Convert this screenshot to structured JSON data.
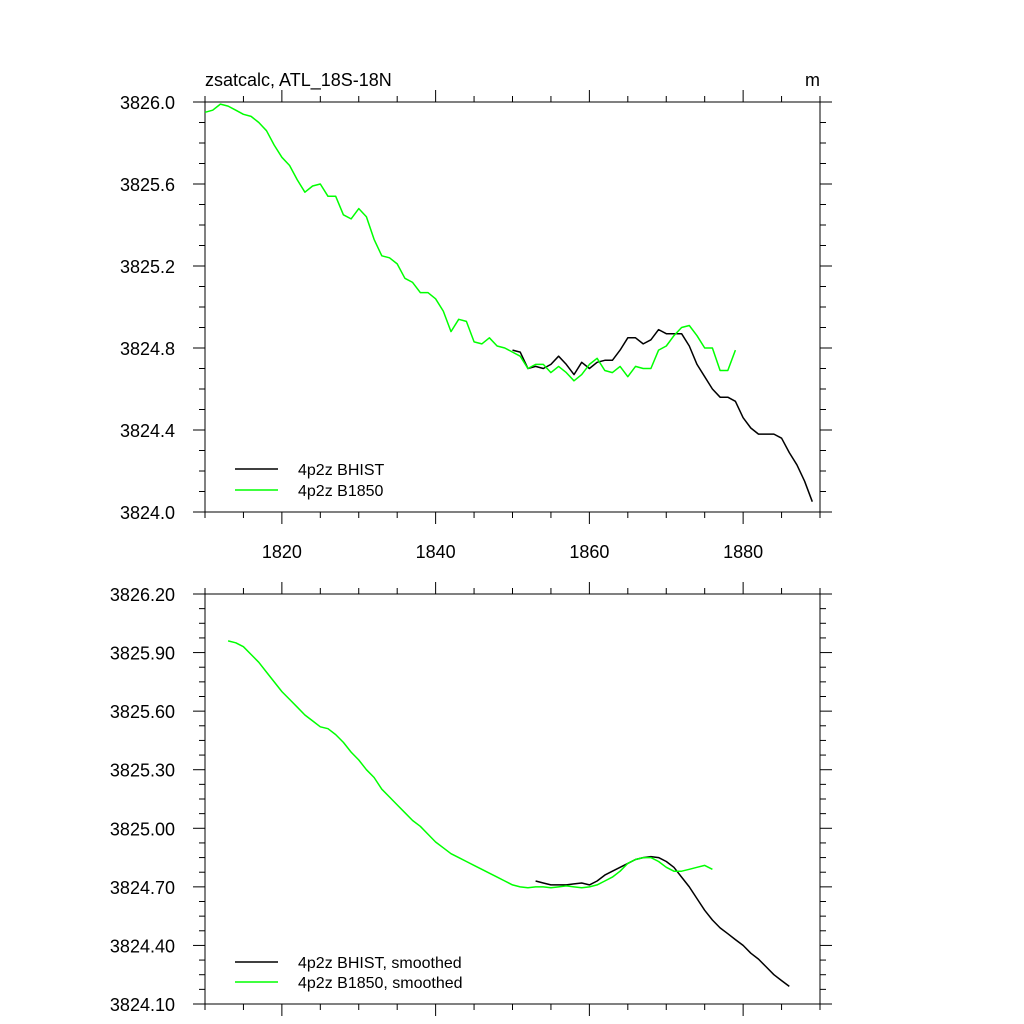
{
  "chart_data": [
    {
      "type": "line",
      "title": "zsatcalc, ATL_18S-18N",
      "units": "m",
      "xlim": [
        1810,
        1890
      ],
      "ylim": [
        3824.0,
        3826.0
      ],
      "x_ticks": [
        1820,
        1840,
        1860,
        1880
      ],
      "x_tick_labels": [
        "1820",
        "1840",
        "1860",
        "1880"
      ],
      "y_ticks": [
        3824.0,
        3824.4,
        3824.8,
        3825.2,
        3825.6,
        3826.0
      ],
      "y_tick_labels": [
        "3824.0",
        "3824.4",
        "3824.8",
        "3825.2",
        "3825.6",
        "3826.0"
      ],
      "grid": false,
      "legend_position": "bottom-left",
      "series": [
        {
          "name": "4p2z BHIST",
          "color": "#000000",
          "x": [
            1850,
            1851,
            1852,
            1853,
            1854,
            1855,
            1856,
            1857,
            1858,
            1859,
            1860,
            1861,
            1862,
            1863,
            1864,
            1865,
            1866,
            1867,
            1868,
            1869,
            1870,
            1871,
            1872,
            1873,
            1874,
            1875,
            1876,
            1877,
            1878,
            1879,
            1880,
            1881,
            1882,
            1883,
            1884,
            1885,
            1886,
            1887,
            1888,
            1889
          ],
          "values": [
            3824.79,
            3824.78,
            3824.7,
            3824.71,
            3824.7,
            3824.72,
            3824.76,
            3824.72,
            3824.67,
            3824.73,
            3824.7,
            3824.73,
            3824.74,
            3824.74,
            3824.79,
            3824.85,
            3824.85,
            3824.82,
            3824.84,
            3824.89,
            3824.87,
            3824.87,
            3824.87,
            3824.81,
            3824.72,
            3824.66,
            3824.6,
            3824.56,
            3824.56,
            3824.54,
            3824.46,
            3824.41,
            3824.38,
            3824.38,
            3824.38,
            3824.36,
            3824.29,
            3824.23,
            3824.15,
            3824.05
          ]
        },
        {
          "name": "4p2z B1850",
          "color": "#00ff00",
          "x": [
            1810,
            1811,
            1812,
            1813,
            1814,
            1815,
            1816,
            1817,
            1818,
            1819,
            1820,
            1821,
            1822,
            1823,
            1824,
            1825,
            1826,
            1827,
            1828,
            1829,
            1830,
            1831,
            1832,
            1833,
            1834,
            1835,
            1836,
            1837,
            1838,
            1839,
            1840,
            1841,
            1842,
            1843,
            1844,
            1845,
            1846,
            1847,
            1848,
            1849,
            1850,
            1851,
            1852,
            1853,
            1854,
            1855,
            1856,
            1857,
            1858,
            1859,
            1860,
            1861,
            1862,
            1863,
            1864,
            1865,
            1866,
            1867,
            1868,
            1869,
            1870,
            1871,
            1872,
            1873,
            1874,
            1875,
            1876,
            1877,
            1878,
            1879
          ],
          "values": [
            3825.95,
            3825.96,
            3825.99,
            3825.98,
            3825.96,
            3825.94,
            3825.93,
            3825.9,
            3825.86,
            3825.79,
            3825.73,
            3825.69,
            3825.62,
            3825.56,
            3825.59,
            3825.6,
            3825.54,
            3825.54,
            3825.45,
            3825.43,
            3825.48,
            3825.44,
            3825.33,
            3825.25,
            3825.24,
            3825.21,
            3825.14,
            3825.12,
            3825.07,
            3825.07,
            3825.04,
            3824.98,
            3824.88,
            3824.94,
            3824.93,
            3824.83,
            3824.82,
            3824.85,
            3824.81,
            3824.8,
            3824.78,
            3824.76,
            3824.7,
            3824.72,
            3824.72,
            3824.68,
            3824.71,
            3824.68,
            3824.64,
            3824.67,
            3824.72,
            3824.75,
            3824.69,
            3824.68,
            3824.71,
            3824.66,
            3824.71,
            3824.7,
            3824.7,
            3824.79,
            3824.81,
            3824.86,
            3824.9,
            3824.91,
            3824.86,
            3824.8,
            3824.8,
            3824.69,
            3824.69,
            3824.79
          ]
        }
      ]
    },
    {
      "type": "line",
      "title": "",
      "xlim": [
        1810,
        1890
      ],
      "ylim": [
        3824.1,
        3826.2
      ],
      "x_ticks": [
        1820,
        1840,
        1860,
        1880
      ],
      "y_ticks": [
        3824.1,
        3824.4,
        3824.7,
        3825.0,
        3825.3,
        3825.6,
        3825.9,
        3826.2
      ],
      "y_tick_labels": [
        "3824.10",
        "3824.40",
        "3824.70",
        "3825.00",
        "3825.30",
        "3825.60",
        "3825.90",
        "3826.20"
      ],
      "grid": false,
      "legend_position": "bottom-left",
      "series": [
        {
          "name": "4p2z BHIST, smoothed",
          "color": "#000000",
          "x": [
            1853,
            1854,
            1855,
            1856,
            1857,
            1858,
            1859,
            1860,
            1861,
            1862,
            1863,
            1864,
            1865,
            1866,
            1867,
            1868,
            1869,
            1870,
            1871,
            1872,
            1873,
            1874,
            1875,
            1876,
            1877,
            1878,
            1879,
            1880,
            1881,
            1882,
            1883,
            1884,
            1885,
            1886
          ],
          "values": [
            3824.73,
            3824.72,
            3824.71,
            3824.71,
            3824.71,
            3824.715,
            3824.72,
            3824.71,
            3824.73,
            3824.76,
            3824.78,
            3824.8,
            3824.82,
            3824.84,
            3824.85,
            3824.855,
            3824.85,
            3824.83,
            3824.8,
            3824.75,
            3824.7,
            3824.64,
            3824.58,
            3824.53,
            3824.49,
            3824.46,
            3824.43,
            3824.4,
            3824.36,
            3824.33,
            3824.29,
            3824.25,
            3824.22,
            3824.19
          ]
        },
        {
          "name": "4p2z B1850, smoothed",
          "color": "#00ff00",
          "x": [
            1813,
            1814,
            1815,
            1816,
            1817,
            1818,
            1819,
            1820,
            1821,
            1822,
            1823,
            1824,
            1825,
            1826,
            1827,
            1828,
            1829,
            1830,
            1831,
            1832,
            1833,
            1834,
            1835,
            1836,
            1837,
            1838,
            1839,
            1840,
            1841,
            1842,
            1843,
            1844,
            1845,
            1846,
            1847,
            1848,
            1849,
            1850,
            1851,
            1852,
            1853,
            1854,
            1855,
            1856,
            1857,
            1858,
            1859,
            1860,
            1861,
            1862,
            1863,
            1864,
            1865,
            1866,
            1867,
            1868,
            1869,
            1870,
            1871,
            1872,
            1873,
            1874,
            1875,
            1876
          ],
          "values": [
            3825.96,
            3825.95,
            3825.93,
            3825.89,
            3825.85,
            3825.8,
            3825.75,
            3825.7,
            3825.66,
            3825.62,
            3825.58,
            3825.55,
            3825.52,
            3825.51,
            3825.48,
            3825.44,
            3825.39,
            3825.35,
            3825.3,
            3825.26,
            3825.2,
            3825.16,
            3825.12,
            3825.08,
            3825.04,
            3825.01,
            3824.97,
            3824.93,
            3824.9,
            3824.87,
            3824.85,
            3824.83,
            3824.81,
            3824.79,
            3824.77,
            3824.75,
            3824.73,
            3824.71,
            3824.7,
            3824.695,
            3824.7,
            3824.7,
            3824.695,
            3824.7,
            3824.705,
            3824.7,
            3824.695,
            3824.7,
            3824.71,
            3824.73,
            3824.75,
            3824.78,
            3824.82,
            3824.84,
            3824.85,
            3824.85,
            3824.83,
            3824.8,
            3824.78,
            3824.78,
            3824.79,
            3824.8,
            3824.81,
            3824.79
          ]
        }
      ]
    }
  ]
}
